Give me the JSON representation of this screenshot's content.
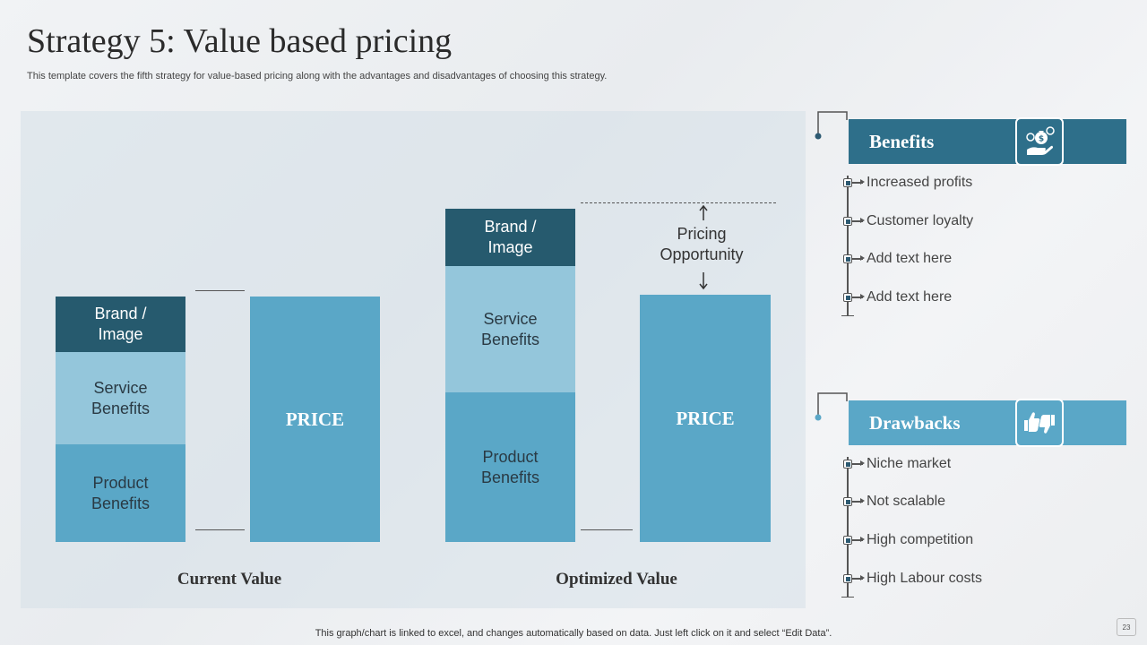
{
  "slide": {
    "title": "Strategy 5: Value based pricing",
    "subtitle": "This template covers the fifth  strategy for value-based pricing along with the advantages and disadvantages of choosing this strategy.",
    "footer": "This graph/chart is linked to excel,  and changes automatically based on data. Just left click on it and select “Edit Data”.",
    "page_number": "23"
  },
  "diagram": {
    "current": {
      "label": "Current Value",
      "segments": [
        {
          "name": "brand",
          "text": "Brand /\nImage"
        },
        {
          "name": "service",
          "text": "Service\nBenefits"
        },
        {
          "name": "product",
          "text": "Product\nBenefits"
        }
      ],
      "price": "PRICE"
    },
    "optimized": {
      "label": "Optimized Value",
      "segments": [
        {
          "name": "brand",
          "text": "Brand /\nImage"
        },
        {
          "name": "service",
          "text": "Service\nBenefits"
        },
        {
          "name": "product",
          "text": "Product\nBenefits"
        }
      ],
      "price": "PRICE"
    },
    "opportunity": "Pricing\nOpportunity"
  },
  "benefits": {
    "heading": "Benefits",
    "icon": "money-bag-hand-icon",
    "items": [
      "Increased profits",
      "Customer loyalty",
      "Add text here",
      "Add text here"
    ]
  },
  "drawbacks": {
    "heading": "Drawbacks",
    "icon": "thumbs-up-down-icon",
    "items": [
      "Niche market",
      "Not scalable",
      "High competition",
      "High Labour costs"
    ]
  },
  "colors": {
    "dark": "#265a6e",
    "medium": "#5aa7c7",
    "light": "#94c6db",
    "benefits_bar": "#2e6f8a",
    "drawbacks_bar": "#5aa7c7"
  }
}
